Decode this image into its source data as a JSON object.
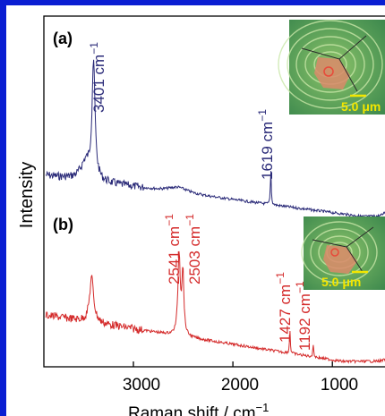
{
  "chart_data": {
    "type": "line",
    "xlabel": "Raman shift / cm",
    "xlabel_superscript": "−1",
    "ylabel": "Intensity",
    "x_reversed": true,
    "xlim": [
      3900,
      300
    ],
    "x_ticks": [
      3000,
      2000,
      1000
    ],
    "x_tick_labels": [
      "3000",
      "2000",
      "1000"
    ],
    "y_ticks": false,
    "grid": false,
    "series": [
      {
        "id": "a",
        "panel_label": "(a)",
        "color": "#2a2a78",
        "peaks": [
          {
            "x": 3401,
            "label": "3401 cm",
            "sup": "−1"
          },
          {
            "x": 1619,
            "label": "1619 cm",
            "sup": "−1"
          }
        ]
      },
      {
        "id": "b",
        "panel_label": "(b)",
        "color": "#d42a2a",
        "peaks": [
          {
            "x": 2541,
            "label": "2541 cm",
            "sup": "−1"
          },
          {
            "x": 2503,
            "label": "2503 cm",
            "sup": "−1"
          },
          {
            "x": 1427,
            "label": "1427 cm",
            "sup": "−1"
          },
          {
            "x": 1192,
            "label": "1192 cm",
            "sup": "−1"
          }
        ]
      }
    ],
    "insets": [
      {
        "id": "a",
        "scale_bar": "5.0 μm"
      },
      {
        "id": "b",
        "scale_bar": "5.0 μm"
      }
    ]
  }
}
